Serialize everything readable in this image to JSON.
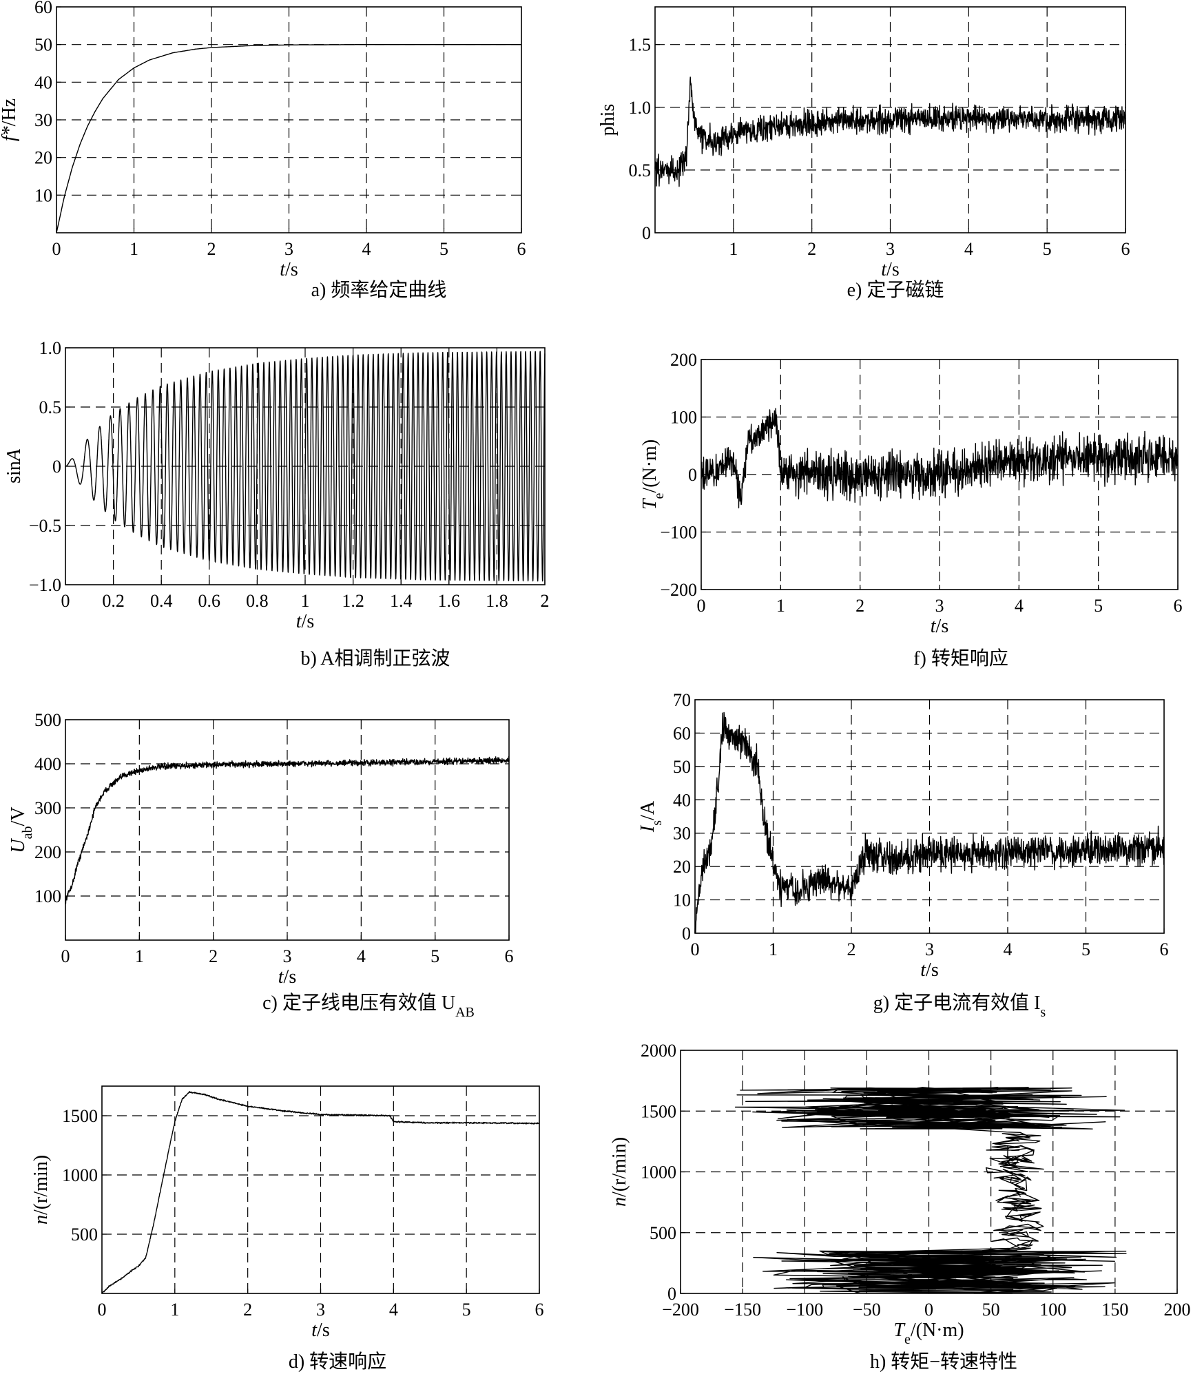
{
  "chart_data": [
    {
      "id": "a",
      "type": "line",
      "caption": "a) 频率给定曲线",
      "xlabel": "t/s",
      "ylabel": "f*/Hz",
      "xlim": [
        0,
        6
      ],
      "ylim": [
        0,
        60
      ],
      "xticks": [
        0,
        1,
        2,
        3,
        4,
        5,
        6
      ],
      "yticks": [
        10,
        20,
        30,
        40,
        50,
        60
      ],
      "xticklabels": [
        "0",
        "1",
        "2",
        "3",
        "4",
        "5",
        "6"
      ],
      "yticklabels": [
        "10",
        "20",
        "30",
        "40",
        "50",
        "60"
      ],
      "grid": true,
      "series": [
        {
          "x": [
            0,
            0.1,
            0.2,
            0.3,
            0.4,
            0.5,
            0.6,
            0.8,
            1.0,
            1.2,
            1.5,
            1.8,
            2.0,
            2.5,
            3.0,
            4.0,
            5.0,
            6.0
          ],
          "y": [
            0,
            9.5,
            17.1,
            23.3,
            28.3,
            32.3,
            35.7,
            40.7,
            43.8,
            45.9,
            47.8,
            48.8,
            49.2,
            49.7,
            49.9,
            50,
            50,
            50
          ]
        }
      ]
    },
    {
      "id": "b",
      "type": "line",
      "caption": "b) A相调制正弦波",
      "xlabel": "t/s",
      "ylabel": "sinA",
      "xlim": [
        0,
        2
      ],
      "ylim": [
        -1,
        1
      ],
      "xticks": [
        0,
        0.2,
        0.4,
        0.6,
        0.8,
        1,
        1.2,
        1.4,
        1.6,
        1.8,
        2
      ],
      "yticks": [
        -1,
        -0.5,
        0,
        0.5,
        1
      ],
      "xticklabels": [
        "0",
        "0.2",
        "0.4",
        "0.6",
        "0.8",
        "1",
        "1.2",
        "1.4",
        "1.6",
        "1.8",
        "2"
      ],
      "yticklabels": [
        "−1.0",
        "−0.5",
        "0",
        "0.5",
        "1.0"
      ],
      "grid": true,
      "envelope": {
        "t": [
          0,
          0.1,
          0.2,
          0.3,
          0.4,
          0.6,
          0.8,
          1.0,
          1.2,
          1.5,
          2.0
        ],
        "amp": [
          0,
          0.25,
          0.45,
          0.58,
          0.68,
          0.8,
          0.87,
          0.91,
          0.94,
          0.96,
          0.97
        ]
      },
      "freq_hz_end": 50
    },
    {
      "id": "c",
      "type": "line",
      "caption": "c) 定子线电压有效值 U",
      "caption_sub": "AB",
      "xlabel": "t/s",
      "ylabel": "U",
      "ylabel_sub": "ab",
      "ylabel_unit": "/V",
      "xlim": [
        0,
        6
      ],
      "ylim": [
        0,
        500
      ],
      "xticks": [
        0,
        1,
        2,
        3,
        4,
        5,
        6
      ],
      "yticks": [
        100,
        200,
        300,
        400,
        500
      ],
      "xticklabels": [
        "0",
        "1",
        "2",
        "3",
        "4",
        "5",
        "6"
      ],
      "yticklabels": [
        "100",
        "200",
        "300",
        "400",
        "500"
      ],
      "grid": true,
      "series": [
        {
          "x": [
            0,
            0.05,
            0.1,
            0.15,
            0.2,
            0.25,
            0.3,
            0.35,
            0.4,
            0.5,
            0.6,
            0.7,
            0.8,
            1.0,
            1.2,
            1.5,
            2.0,
            3.0,
            4.0,
            5.0,
            6.0
          ],
          "y": [
            90,
            110,
            130,
            165,
            190,
            215,
            240,
            270,
            300,
            330,
            350,
            362,
            375,
            385,
            392,
            395,
            398,
            400,
            402,
            405,
            408
          ]
        }
      ],
      "noise": 10
    },
    {
      "id": "d",
      "type": "line",
      "caption": "d) 转速响应",
      "xlabel": "t/s",
      "ylabel": "n/(r/min)",
      "xlim": [
        0,
        6
      ],
      "ylim": [
        0,
        1750
      ],
      "xticks": [
        0,
        1,
        2,
        3,
        4,
        5,
        6
      ],
      "yticks": [
        500,
        1000,
        1500
      ],
      "xticklabels": [
        "0",
        "1",
        "2",
        "3",
        "4",
        "5",
        "6"
      ],
      "yticklabels": [
        "500",
        "1000",
        "1500"
      ],
      "grid": true,
      "series": [
        {
          "x": [
            0,
            0.05,
            0.1,
            0.2,
            0.3,
            0.4,
            0.5,
            0.6,
            0.7,
            0.8,
            0.9,
            1.0,
            1.1,
            1.2,
            1.4,
            1.6,
            2.0,
            2.5,
            3.0,
            3.5,
            3.95,
            4.0,
            4.5,
            5.0,
            6.0
          ],
          "y": [
            0,
            30,
            60,
            100,
            140,
            190,
            230,
            300,
            560,
            860,
            1160,
            1450,
            1640,
            1700,
            1680,
            1640,
            1580,
            1540,
            1510,
            1505,
            1500,
            1450,
            1440,
            1440,
            1435
          ]
        }
      ],
      "noise": 8
    },
    {
      "id": "e",
      "type": "line",
      "caption": "e) 定子磁链",
      "xlabel": "t/s",
      "ylabel": "phis",
      "xlim": [
        0,
        6
      ],
      "ylim": [
        0,
        1.8
      ],
      "xticks": [
        1,
        2,
        3,
        4,
        5,
        6
      ],
      "yticks": [
        0,
        0.5,
        1.0,
        1.5
      ],
      "xticklabels": [
        "1",
        "2",
        "3",
        "4",
        "5",
        "6"
      ],
      "yticklabels": [
        "0",
        "0.5",
        "1.0",
        "1.5"
      ],
      "grid": true,
      "series": [
        {
          "x": [
            0,
            0.3,
            0.4,
            0.45,
            0.5,
            0.6,
            0.8,
            1.0,
            2.0,
            3.0,
            4.0,
            5.0,
            6.0
          ],
          "y": [
            0.5,
            0.5,
            0.6,
            1.2,
            0.9,
            0.75,
            0.72,
            0.8,
            0.88,
            0.9,
            0.92,
            0.9,
            0.9
          ]
        }
      ],
      "noise": 0.15
    },
    {
      "id": "f",
      "type": "line",
      "caption": "f) 转矩响应",
      "xlabel": "t/s",
      "ylabel": "T",
      "ylabel_sub": "e",
      "ylabel_unit": "/(N·m)",
      "xlim": [
        0,
        6
      ],
      "ylim": [
        -200,
        200
      ],
      "xticks": [
        0,
        1,
        2,
        3,
        4,
        5,
        6
      ],
      "yticks": [
        -200,
        -100,
        0,
        100,
        200
      ],
      "xticklabels": [
        "0",
        "1",
        "2",
        "3",
        "4",
        "5",
        "6"
      ],
      "yticklabels": [
        "−200",
        "−100",
        "0",
        "100",
        "200"
      ],
      "grid": true,
      "series": [
        {
          "x": [
            0,
            0.2,
            0.3,
            0.4,
            0.5,
            0.6,
            0.7,
            0.8,
            0.95,
            1.0,
            1.5,
            2.0,
            3.0,
            3.5,
            4.0,
            5.0,
            6.0
          ],
          "y": [
            0,
            5,
            20,
            30,
            -40,
            60,
            65,
            85,
            95,
            5,
            0,
            0,
            0,
            10,
            25,
            30,
            30
          ]
        }
      ],
      "noise": 40
    },
    {
      "id": "g",
      "type": "line",
      "caption": "g) 定子电流有效值 I",
      "caption_sub": "s",
      "xlabel": "t/s",
      "ylabel": "I",
      "ylabel_sub": "s",
      "ylabel_unit": "/A",
      "xlim": [
        0,
        6
      ],
      "ylim": [
        0,
        70
      ],
      "xticks": [
        0,
        1,
        2,
        3,
        4,
        5,
        6
      ],
      "yticks": [
        0,
        10,
        20,
        30,
        40,
        50,
        60,
        70
      ],
      "xticklabels": [
        "0",
        "1",
        "2",
        "3",
        "4",
        "5",
        "6"
      ],
      "yticklabels": [
        "0",
        "10",
        "20",
        "30",
        "40",
        "50",
        "60",
        "70"
      ],
      "grid": true,
      "series": [
        {
          "x": [
            0,
            0.05,
            0.1,
            0.2,
            0.3,
            0.35,
            0.4,
            0.6,
            0.8,
            0.9,
            1.0,
            1.1,
            1.3,
            1.6,
            2.0,
            2.2,
            2.5,
            3.0,
            4.0,
            5.0,
            6.0
          ],
          "y": [
            0,
            12,
            20,
            25,
            45,
            62,
            60,
            58,
            50,
            32,
            20,
            14,
            12,
            16,
            14,
            25,
            22,
            24,
            24,
            25,
            26
          ]
        }
      ],
      "noise": 7
    },
    {
      "id": "h",
      "type": "line",
      "caption": "h) 转矩−转速特性",
      "xlabel": "T",
      "xlabel_sub": "e",
      "xlabel_unit": "/(N·m)",
      "ylabel": "n/(r/min)",
      "xlim": [
        -200,
        200
      ],
      "ylim": [
        0,
        2000
      ],
      "xticks": [
        -200,
        -150,
        -100,
        -50,
        0,
        50,
        100,
        150,
        200
      ],
      "yticks": [
        0,
        500,
        1000,
        1500,
        2000
      ],
      "xticklabels": [
        "−200",
        "−150",
        "−100",
        "−50",
        "0",
        "50",
        "100",
        "150",
        "200"
      ],
      "yticklabels": [
        "0",
        "500",
        "1000",
        "1500",
        "2000"
      ],
      "grid": true,
      "band_low": {
        "n": [
          0,
          350
        ],
        "center": 10,
        "spread": 170
      },
      "band_mid": {
        "n": [
          350,
          1350
        ],
        "center": 70,
        "spread": 25
      },
      "band_high": {
        "n": [
          1350,
          1700
        ],
        "center": 0,
        "spread": 160
      }
    }
  ]
}
